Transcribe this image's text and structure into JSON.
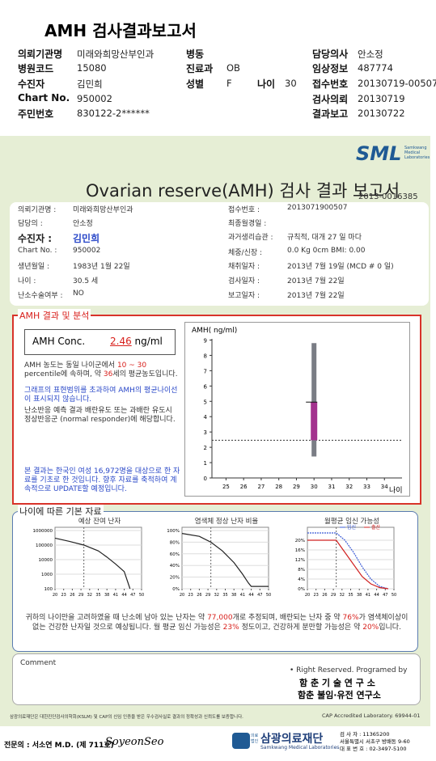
{
  "header": {
    "title": "AMH 검사결과보고서",
    "rows": [
      [
        [
          "의뢰기관명",
          "미래와희망산부인과"
        ],
        [
          "병동",
          ""
        ],
        [
          "담당의사",
          "안소정"
        ]
      ],
      [
        [
          "병원코드",
          "15080"
        ],
        [
          "진료과",
          "OB"
        ],
        [
          "임상정보",
          "487774"
        ]
      ],
      [
        [
          "수진자",
          "김민희"
        ],
        [
          "성별",
          "F"
        ],
        [
          "접수번호",
          "20130719-00507"
        ]
      ],
      [
        [
          "Chart No.",
          "950002"
        ],
        null,
        [
          "검사의뢰",
          "20130719"
        ]
      ],
      [
        [
          "주민번호",
          "830122-2******"
        ],
        null,
        [
          "결과보고",
          "20130722"
        ]
      ]
    ],
    "age_label": "나이",
    "age": "30"
  },
  "report": {
    "logo": "SML",
    "logo_sub": "Samkwang Medical Laboratories",
    "title": "Ovarian reserve(AMH) 검사 결과 보고서",
    "report_no": "2013-0016385",
    "info_left": [
      [
        "의뢰기관명 :",
        "미래와희망산부인과"
      ],
      [
        "담당의 :",
        "안소정"
      ],
      [
        "수진자 :",
        "김민희"
      ],
      [
        "Chart No. :",
        "950002"
      ],
      [
        "생년월일 :",
        "1983년 1월 22일"
      ],
      [
        "나이 :",
        "30.5 세"
      ],
      [
        "난소수술여부 :",
        "NO"
      ]
    ],
    "info_right": [
      [
        "접수번호 :",
        "2013071900507"
      ],
      [
        "최종월경일 :",
        ""
      ],
      [
        "과거생리습관 :",
        "규칙적, 대개  27 일 마다"
      ],
      [
        "체중/신장 :",
        "0.0 Kg     0cm   BMI:  0.00"
      ],
      [
        "채취일자 :",
        "2013년 7월 19일   (MCD # 0 일)"
      ],
      [
        "검사일자 :",
        "2013년 7월 22일"
      ],
      [
        "보고일자 :",
        "2013년 7월 22일"
      ]
    ]
  },
  "amh_result": {
    "section_title": "AMH 결과 및 분석",
    "conc_label": "AMH Conc.",
    "conc_value": "2.46",
    "conc_unit": "ng/ml",
    "p1": [
      "AMH 농도는 동일 나이군에서",
      "10 ~ 30",
      "percentile에 속하며, 약",
      "36",
      "세의 평균농도입니다."
    ],
    "p2": "그래프의 표현범위를 초과하여 AMH의 평균나이선이 표시되지 않습니다.",
    "p3": "난소반응 예측 결과 배란유도 또는 과배란 유도시 정상반응군 (normal responder)에 해당합니다.",
    "p4": "본 결과는 한국인 여성 16,972명을 대상으로 한 자료를 기초로 한 것입니다. 향후 자료를 축적하여 계속적으로 UPDATE할 예정입니다.",
    "chart": {
      "type": "box",
      "y_label": "AMH( ng/ml)",
      "x_label": "나이",
      "xlim": [
        24.2,
        35
      ],
      "ylim": [
        0,
        9.5
      ],
      "xticks": [
        25,
        26,
        27,
        28,
        29,
        30,
        31,
        32,
        33,
        34
      ],
      "yticks": [
        0,
        1,
        2,
        3,
        4,
        5,
        6,
        7,
        8,
        9
      ],
      "age": 30,
      "range": [
        1.4,
        8.8
      ],
      "box": [
        2.46,
        4.95
      ],
      "patient_value": 2.46,
      "range_color": "#7a7d85",
      "box_color": "#a3328e"
    }
  },
  "basic_data": {
    "section_title": "나이에 따른 기본 자료",
    "marker_age": 30,
    "charts": [
      {
        "type": "line",
        "title": "예상 잔여 난자",
        "log_y": true,
        "xlim": [
          20,
          50
        ],
        "ylim": [
          100,
          1000000
        ],
        "xticks": [
          20,
          23,
          26,
          29,
          32,
          35,
          38,
          41,
          44,
          47,
          50
        ],
        "yticks": [
          1000000,
          100000,
          10000,
          1000,
          100
        ],
        "series": [
          {
            "color": "#222222",
            "x": [
              20,
              25,
              30,
              35,
              38,
              41,
              44,
              46
            ],
            "values": [
              300000,
              180000,
              100000,
              40000,
              15000,
              5000,
              1500,
              100
            ]
          }
        ]
      },
      {
        "type": "line",
        "title": "염색체 정상 난자 비율",
        "xlim": [
          20,
          50
        ],
        "ylim": [
          0,
          100
        ],
        "xticks": [
          20,
          23,
          26,
          29,
          32,
          35,
          38,
          41,
          44,
          47,
          50
        ],
        "yticks": [
          {
            "value": 100,
            "label": "100%"
          },
          {
            "value": 80,
            "label": "80%"
          },
          {
            "value": 60,
            "label": "60%"
          },
          {
            "value": 40,
            "label": "40%"
          },
          {
            "value": 20,
            "label": "20%"
          },
          {
            "value": 0,
            "label": "0%"
          }
        ],
        "series": [
          {
            "color": "#222222",
            "x": [
              20,
              26,
              30,
              34,
              38,
              41,
              43,
              44,
              50
            ],
            "values": [
              95,
              90,
              80,
              65,
              45,
              25,
              10,
              4,
              4
            ]
          }
        ]
      },
      {
        "type": "line",
        "title": "월평균 임신 가능성",
        "xlim": [
          20,
          50
        ],
        "ylim": [
          0,
          24
        ],
        "xticks": [
          20,
          23,
          26,
          29,
          32,
          35,
          38,
          41,
          44,
          47,
          50
        ],
        "yticks": [
          {
            "value": 20,
            "label": "20%"
          },
          {
            "value": 16,
            "label": "16%"
          },
          {
            "value": 12,
            "label": "12%"
          },
          {
            "value": 8,
            "label": "8%"
          },
          {
            "value": 4,
            "label": "4%"
          },
          {
            "value": 0,
            "label": "0%"
          }
        ],
        "series": [
          {
            "name": "임신",
            "color": "#3b5bd6",
            "x": [
              20,
              30,
              33,
              36,
              39,
              42,
              45,
              48
            ],
            "values": [
              23,
              23,
              20,
              15,
              9,
              4,
              1,
              0
            ]
          },
          {
            "name": "출산",
            "color": "#d02020",
            "x": [
              20,
              30,
              33,
              36,
              39,
              42,
              45,
              48
            ],
            "values": [
              20,
              20,
              15,
              10,
              5,
              2,
              0.5,
              0
            ]
          }
        ]
      }
    ],
    "summary": [
      "귀하의 나이만을 고려하였을 때 난소에 남아 있는 난자는 약",
      "77,000",
      "개로 추정되며, 배란되는 난자 중 약",
      "76%",
      "가 염색체이상이 없는 건강한 난자일 것으로 예상됩니다. 월 평균 임신 가능성은",
      "23%",
      "정도이고, 건강하게 분만할 가능성은 약",
      "20%",
      "입니다."
    ]
  },
  "comment": {
    "label": "Comment",
    "rights": "• Right Reserved. Programed by",
    "lab1": "함 춘 기 술 연 구 소",
    "lab2": "함춘 불임·유전 연구소"
  },
  "footer": {
    "notice": "삼광의료재단은 대한진단검사의학회(KSLM) 및 CAP의 신임 인증을 받은 우수검사실로 결과의 정확성과 신뢰도를 보증합니다.",
    "cap": "CAP Accredited Laboratory. 69944-01",
    "doctor": "전문의 : 서소연 M.D. (제 711호)",
    "signature": "SoyeonSeo",
    "org": "삼광의료재단",
    "org_prefix": "의료법인",
    "org_en": "Samkwang Medical Laboratories",
    "addr": [
      "검 사 자 : 11365200",
      "서울특별시 서초구 방배동 9-60",
      "대 표 번 호 : 02-3497-5100"
    ]
  }
}
